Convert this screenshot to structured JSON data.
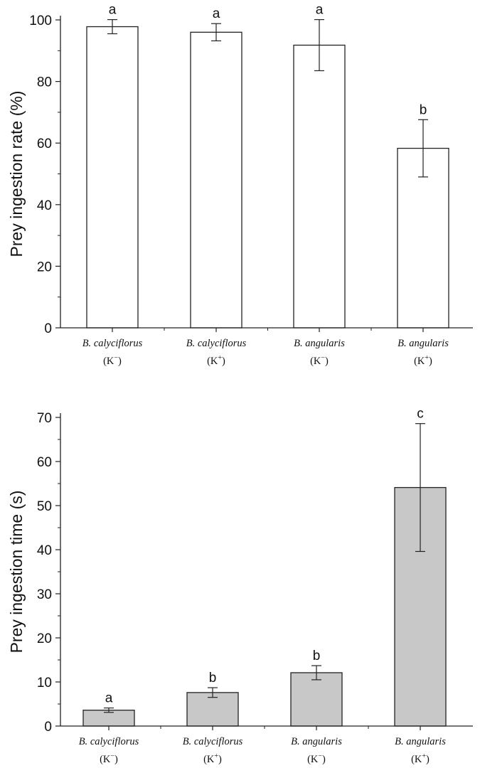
{
  "chart_data": [
    {
      "type": "bar",
      "categories": [
        {
          "genus": "B.",
          "species": "calyciflorus",
          "treatment_base": "(K",
          "treatment_sup": "−",
          "treatment_close": ")"
        },
        {
          "genus": "B.",
          "species": "calyciflorus",
          "treatment_base": "(K",
          "treatment_sup": "+",
          "treatment_close": ")"
        },
        {
          "genus": "B.",
          "species": "angularis",
          "treatment_base": "(K",
          "treatment_sup": "−",
          "treatment_close": ")"
        },
        {
          "genus": "B.",
          "species": "angularis",
          "treatment_base": "(K",
          "treatment_sup": "+",
          "treatment_close": ")"
        }
      ],
      "values": [
        97.8,
        96.0,
        91.8,
        58.3
      ],
      "errors": [
        2.3,
        2.8,
        8.3,
        9.3
      ],
      "significance": [
        "a",
        "a",
        "a",
        "b"
      ],
      "ylabel": "Prey ingestion rate (%)",
      "xlabel": "",
      "ylim": [
        0,
        100
      ],
      "yticks": [
        0,
        20,
        40,
        60,
        80,
        100
      ],
      "bar_color": "#ffffff",
      "grid": false
    },
    {
      "type": "bar",
      "categories": [
        {
          "genus": "B.",
          "species": "calyciflorus",
          "treatment_base": "(K",
          "treatment_sup": "−",
          "treatment_close": ")"
        },
        {
          "genus": "B.",
          "species": "calyciflorus",
          "treatment_base": "(K",
          "treatment_sup": "+",
          "treatment_close": ")"
        },
        {
          "genus": "B.",
          "species": "angularis",
          "treatment_base": "(K",
          "treatment_sup": "−",
          "treatment_close": ")"
        },
        {
          "genus": "B.",
          "species": "angularis",
          "treatment_base": "(K",
          "treatment_sup": "+",
          "treatment_close": ")"
        }
      ],
      "values": [
        3.6,
        7.6,
        12.1,
        54.1
      ],
      "errors": [
        0.5,
        1.1,
        1.6,
        14.5
      ],
      "significance": [
        "a",
        "b",
        "b",
        "c"
      ],
      "ylabel": "Prey ingestion time (s)",
      "xlabel": "",
      "ylim": [
        0,
        70
      ],
      "yticks": [
        0,
        10,
        20,
        30,
        40,
        50,
        60,
        70
      ],
      "bar_color": "#c8c8c8",
      "grid": false
    }
  ]
}
